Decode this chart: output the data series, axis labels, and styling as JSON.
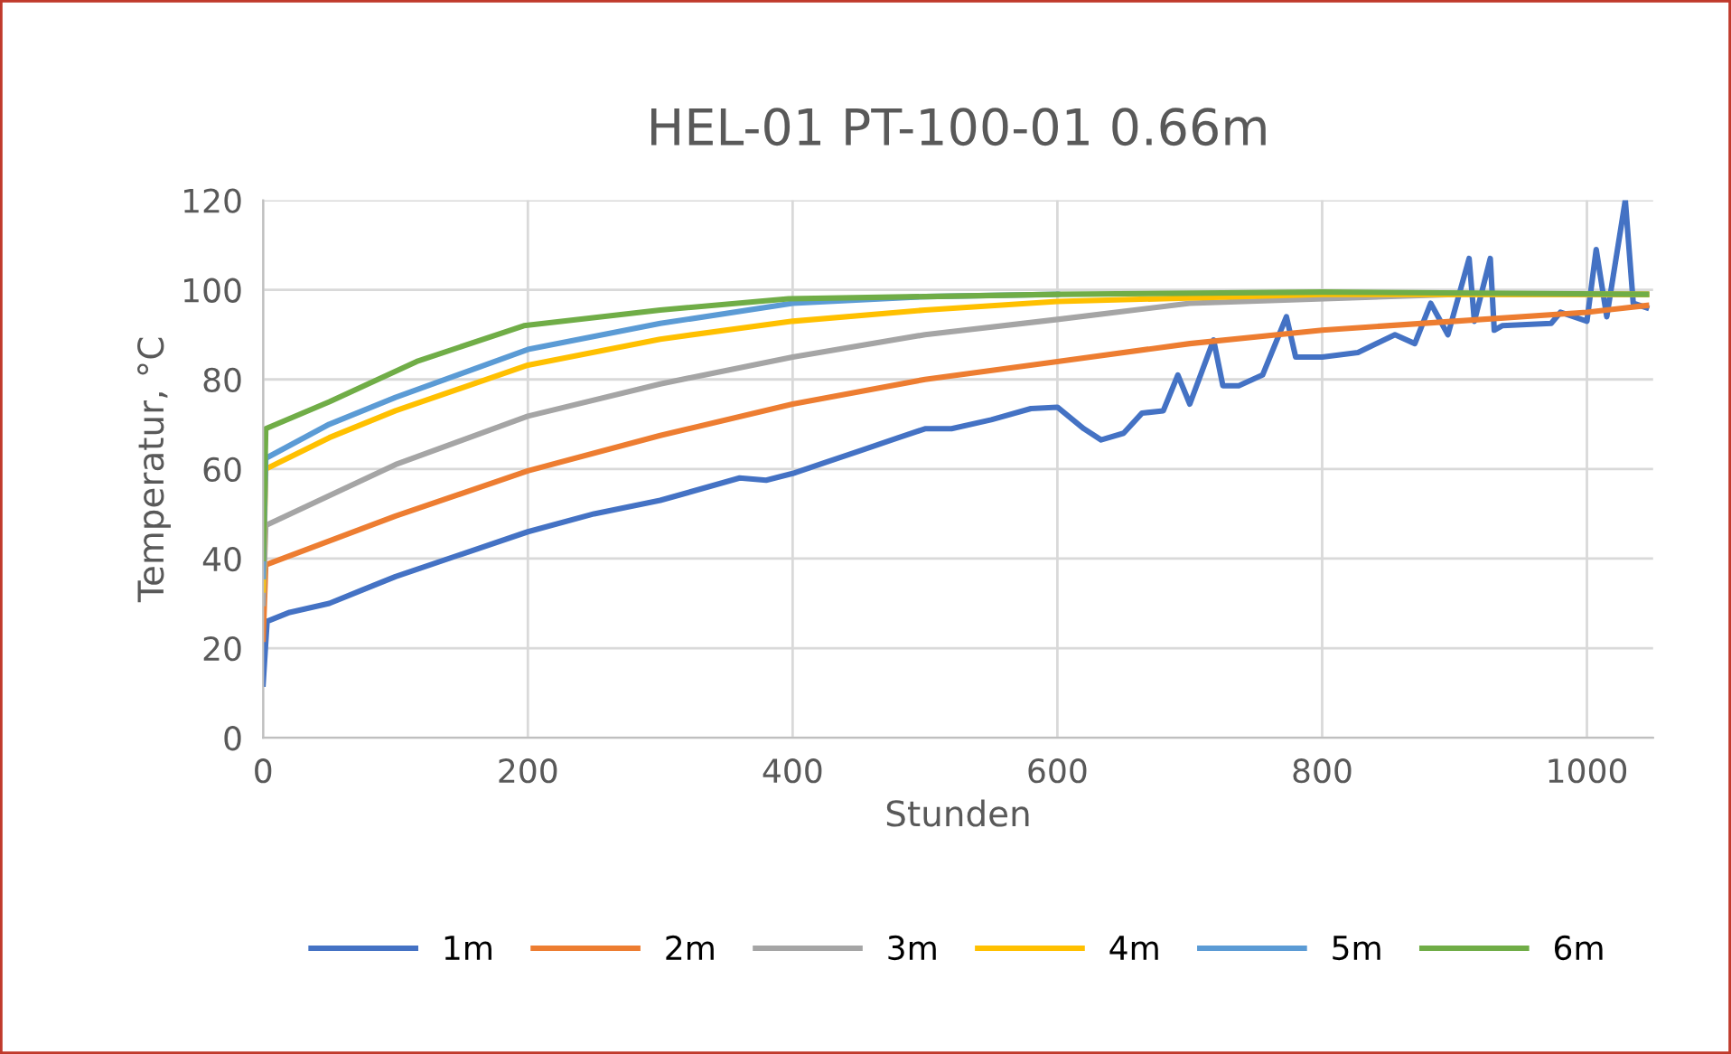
{
  "chart_data": {
    "type": "line",
    "title": "HEL-01 PT-100-01 0.66m",
    "xlabel": "Stunden",
    "ylabel": "Temperatur, °C",
    "xlim": [
      0,
      1050
    ],
    "xticks": [
      0,
      200,
      400,
      600,
      800,
      1000
    ],
    "ylim": [
      0,
      120
    ],
    "yticks": [
      0,
      20,
      40,
      60,
      80,
      100,
      120
    ],
    "grid": true,
    "legend": "bottom",
    "marker": "none",
    "line_style": "solid",
    "series": [
      {
        "name": "1m",
        "color": "#4472c4",
        "x": [
          0,
          3,
          20,
          50,
          75,
          100,
          150,
          200,
          250,
          300,
          360,
          380,
          400,
          450,
          480,
          500,
          520,
          550,
          580,
          600,
          620,
          633,
          650,
          664,
          680,
          691,
          700,
          718,
          725,
          737,
          755,
          773,
          780,
          800,
          827,
          855,
          870,
          882,
          895,
          911,
          915,
          927,
          930,
          936,
          973,
          980,
          1000,
          1007,
          1015,
          1029,
          1035,
          1045
        ],
        "values": [
          12,
          26,
          28,
          30,
          33,
          36,
          41,
          46,
          50,
          53,
          58,
          57.5,
          59,
          64,
          67,
          69,
          69,
          71,
          73.5,
          73.8,
          69,
          66.5,
          68,
          72.5,
          73,
          81,
          74.5,
          88.8,
          78.6,
          78.6,
          81,
          94,
          85,
          85,
          86,
          90,
          88,
          97,
          90,
          107,
          93,
          107,
          91,
          92,
          92.5,
          95,
          93,
          109,
          94,
          120,
          97,
          96
        ]
      },
      {
        "name": "2m",
        "color": "#ed7d31",
        "x": [
          0,
          2,
          100,
          200,
          300,
          400,
          500,
          600,
          700,
          800,
          900,
          1000,
          1045
        ],
        "values": [
          22,
          38.6,
          49.5,
          59.6,
          67.5,
          74.5,
          80,
          84,
          88,
          91,
          93,
          95,
          96.5
        ]
      },
      {
        "name": "3m",
        "color": "#a5a5a5",
        "x": [
          0,
          2,
          100,
          200,
          300,
          400,
          500,
          600,
          700,
          900,
          1045
        ],
        "values": [
          30,
          47.4,
          61,
          71.8,
          79,
          85,
          90,
          93.4,
          97,
          99,
          99
        ]
      },
      {
        "name": "4m",
        "color": "#ffc000",
        "x": [
          0,
          2,
          50,
          100,
          200,
          300,
          400,
          500,
          600,
          800,
          1045
        ],
        "values": [
          33,
          60,
          67,
          73,
          83.2,
          89,
          93,
          95.5,
          97.4,
          99,
          99
        ]
      },
      {
        "name": "5m",
        "color": "#5b9bd5",
        "x": [
          0,
          2,
          50,
          100,
          200,
          300,
          400,
          500,
          600
        ],
        "values": [
          36,
          62.4,
          70,
          76,
          86.7,
          92.5,
          97,
          98.5,
          99
        ]
      },
      {
        "name": "6m",
        "color": "#70ad47",
        "x": [
          0,
          2,
          50,
          116,
          197,
          300,
          397,
          500,
          600,
          800,
          1045
        ],
        "values": [
          40,
          69,
          75,
          84,
          92,
          95.5,
          98,
          98.5,
          99,
          99.5,
          99
        ]
      }
    ]
  }
}
